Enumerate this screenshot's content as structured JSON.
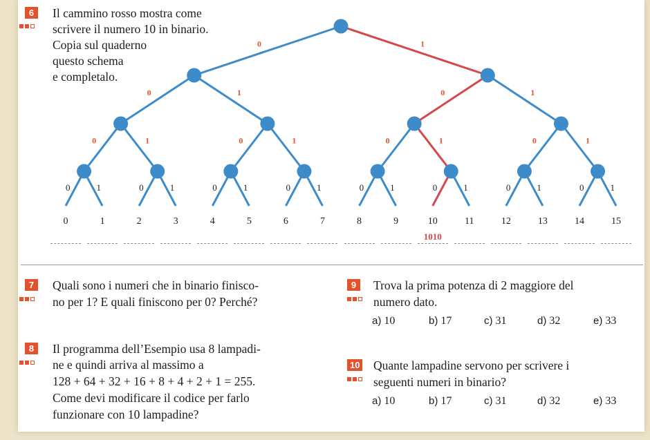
{
  "colors": {
    "blue": "#3d8bc8",
    "red": "#d4474b",
    "orange": "#e2522c"
  },
  "exercise6": {
    "number": "6",
    "lines": [
      "Il cammino rosso mostra come",
      "scrivere il numero 10 in binario.",
      "Copia sul quaderno",
      "questo schema",
      "e completalo."
    ]
  },
  "tree": {
    "edge_labels": {
      "left": "0",
      "right": "1"
    },
    "leaves": [
      "0",
      "1",
      "2",
      "3",
      "4",
      "5",
      "6",
      "7",
      "8",
      "9",
      "10",
      "11",
      "12",
      "13",
      "14",
      "15"
    ],
    "highlight_path": "1010",
    "result_label": "1010"
  },
  "exercise7": {
    "number": "7",
    "lines": [
      "Quali sono i numeri che in binario finisco-",
      "no per 1? E quali finiscono per 0? Perché?"
    ]
  },
  "exercise8": {
    "number": "8",
    "lines": [
      "Il programma dell’Esempio usa 8 lampadi-",
      "ne e quindi arriva al massimo a",
      "128 + 64 + 32 + 16 + 8 + 4 + 2 + 1 = 255.",
      "Come devi modificare il codice per farlo",
      "funzionare con 10 lampadine?"
    ]
  },
  "exercise9": {
    "number": "9",
    "lines": [
      "Trova la prima potenza di 2 maggiore del",
      "numero dato."
    ],
    "options": [
      {
        "letter": "a)",
        "value": "10"
      },
      {
        "letter": "b)",
        "value": "17"
      },
      {
        "letter": "c)",
        "value": "31"
      },
      {
        "letter": "d)",
        "value": "32"
      },
      {
        "letter": "e)",
        "value": "33"
      }
    ]
  },
  "exercise10": {
    "number": "10",
    "lines": [
      "Quante lampadine servono per scrivere i",
      "seguenti numeri in binario?"
    ],
    "options": [
      {
        "letter": "a)",
        "value": "10"
      },
      {
        "letter": "b)",
        "value": "17"
      },
      {
        "letter": "c)",
        "value": "31"
      },
      {
        "letter": "d)",
        "value": "32"
      },
      {
        "letter": "e)",
        "value": "33"
      }
    ]
  }
}
